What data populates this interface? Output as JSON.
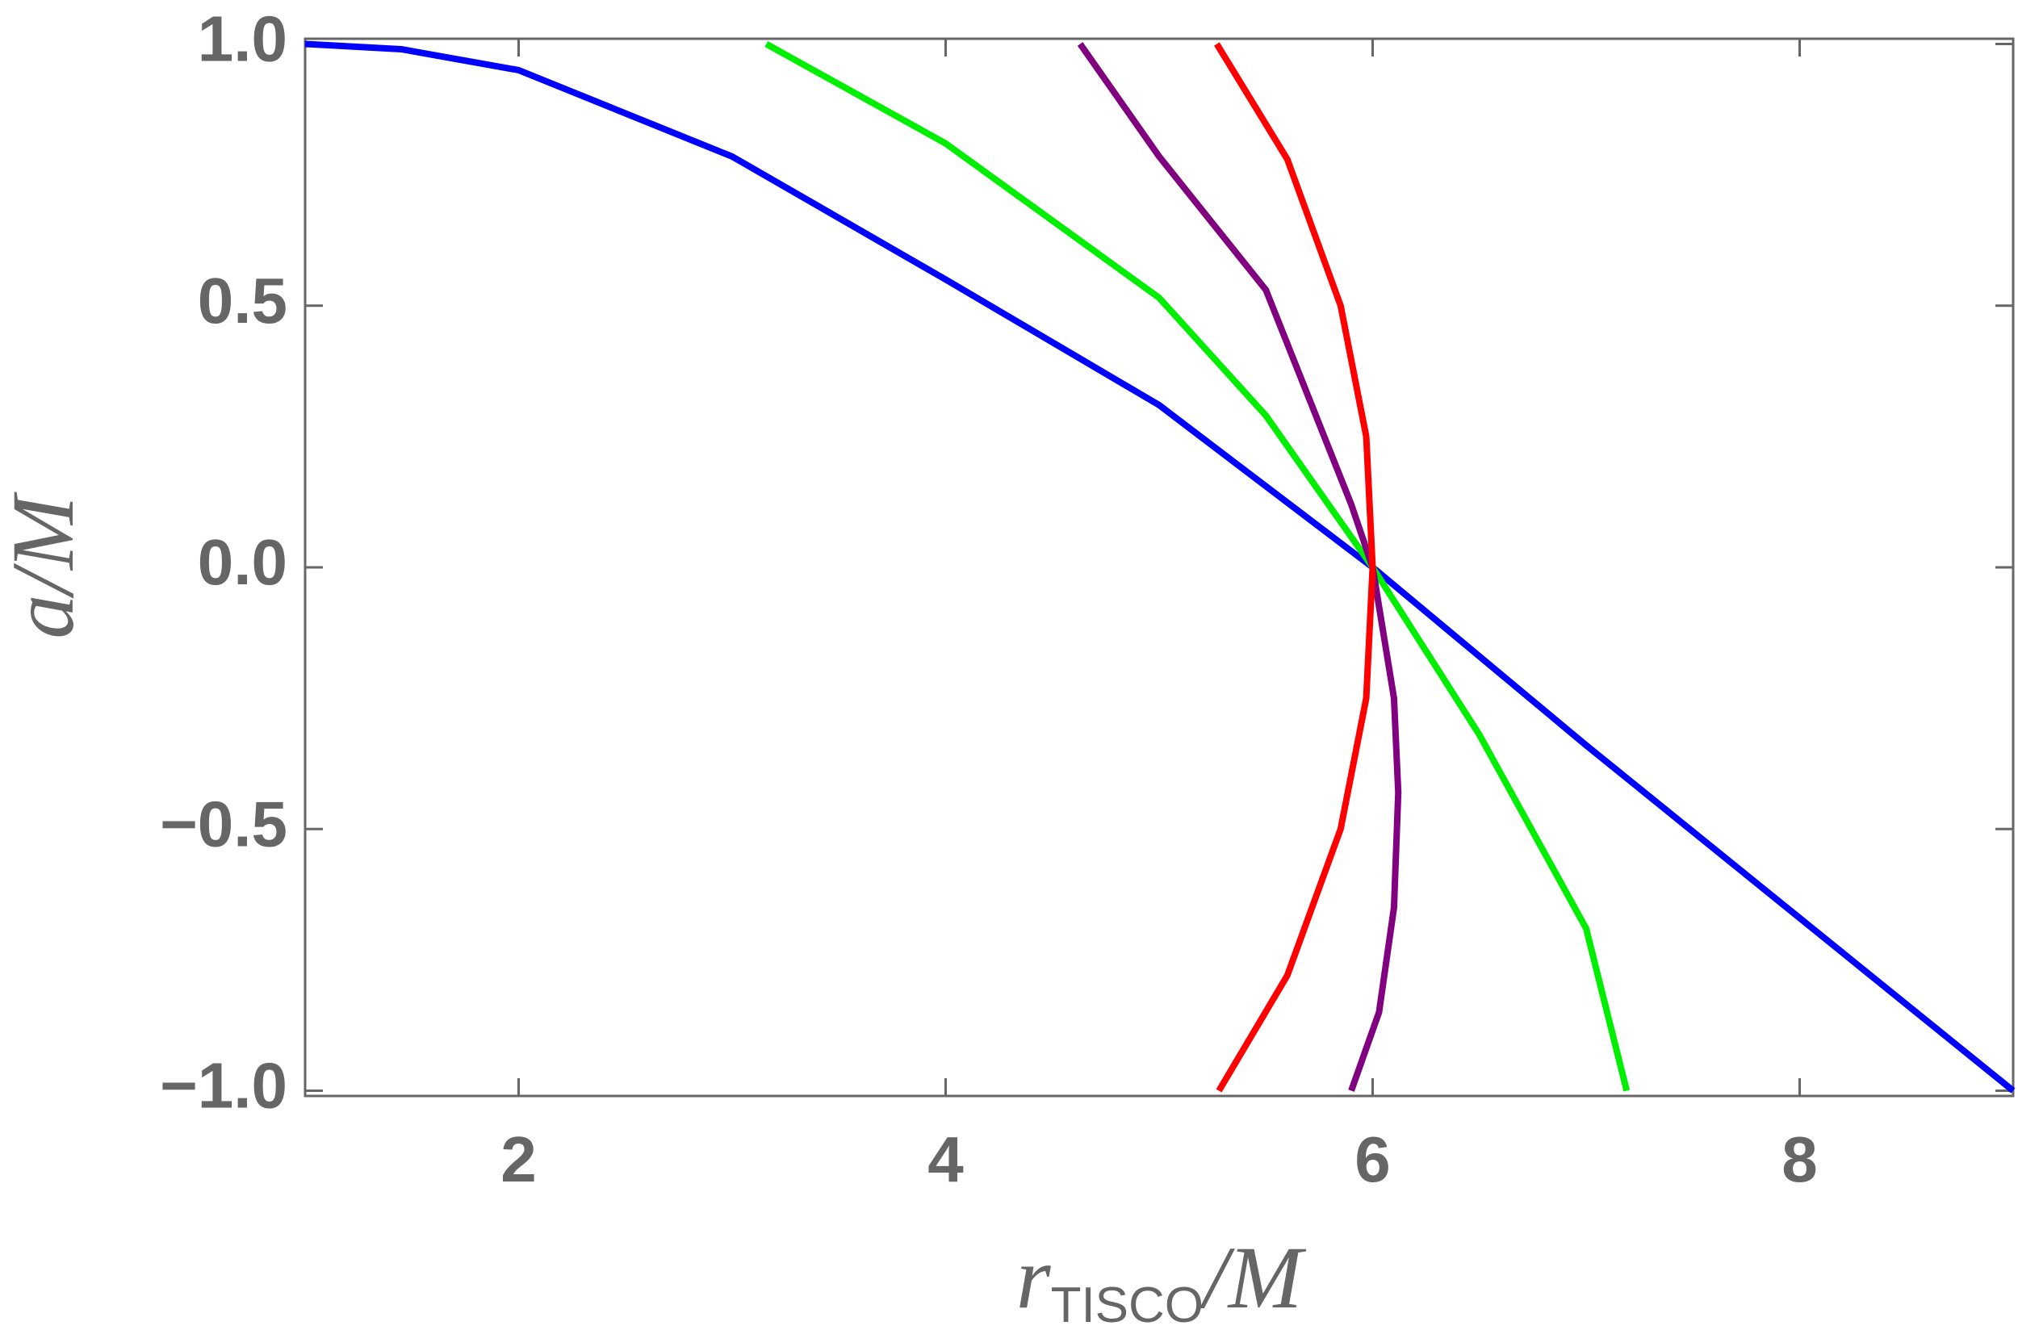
{
  "chart_data": {
    "type": "line",
    "xlabel": [
      "r",
      "TISCO",
      "/M"
    ],
    "ylabel": "a/M",
    "xlim": [
      1,
      9
    ],
    "ylim": [
      -1.01,
      1.01
    ],
    "xticks": [
      2,
      4,
      6,
      8
    ],
    "yticks": [
      {
        "value": 1,
        "label": "1.0"
      },
      {
        "value": 0.5,
        "label": "0.5"
      },
      {
        "value": 0,
        "label": "0.0"
      },
      {
        "value": -0.5,
        "label": "−0.5"
      },
      {
        "value": -1,
        "label": "−1.0"
      }
    ],
    "series": [
      {
        "color": "#0000ff",
        "x": [
          1,
          1.45,
          2,
          3,
          4,
          5,
          6,
          7,
          8,
          9
        ],
        "values": [
          1,
          0.99,
          0.95,
          0.785,
          0.55,
          0.31,
          0,
          -0.34,
          -0.67,
          -1
        ]
      },
      {
        "color": "#00ee00",
        "x": [
          3.16,
          4,
          5,
          5.5,
          6,
          6.5,
          7,
          7.19
        ],
        "values": [
          1,
          0.81,
          0.515,
          0.29,
          0,
          -0.32,
          -0.69,
          -1
        ]
      },
      {
        "color": "#800080",
        "x": [
          4.63,
          5,
          5.5,
          5.9,
          6,
          6.1,
          6.12,
          6.1,
          6.03,
          5.9
        ],
        "values": [
          1,
          0.785,
          0.53,
          0.12,
          0,
          -0.25,
          -0.43,
          -0.65,
          -0.85,
          -1
        ]
      },
      {
        "color": "#ff0000",
        "x": [
          5.27,
          5.6,
          5.85,
          5.97,
          6,
          5.97,
          5.85,
          5.6,
          5.28
        ],
        "values": [
          1,
          0.78,
          0.5,
          0.25,
          0,
          -0.25,
          -0.5,
          -0.78,
          -1
        ]
      }
    ]
  }
}
